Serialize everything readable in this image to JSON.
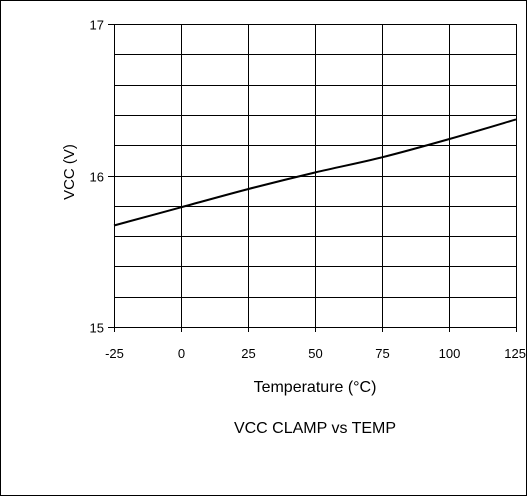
{
  "chart_data": {
    "type": "line",
    "title": "VCC CLAMP vs TEMP",
    "xlabel": "Temperature (°C)",
    "ylabel": "VCC (V)",
    "xlim": [
      -25,
      125
    ],
    "ylim": [
      15,
      17
    ],
    "x_ticks": [
      -25,
      0,
      25,
      50,
      75,
      100,
      125
    ],
    "x_tick_labels": [
      "-25",
      "0",
      "25",
      "50",
      "75",
      "100",
      "125"
    ],
    "y_ticks": [
      15,
      16,
      17
    ],
    "y_tick_labels": [
      "15",
      "16",
      "17"
    ],
    "grid": true,
    "legend": "none",
    "line_color": "#000000",
    "series": [
      {
        "x": [
          -25,
          0,
          25,
          50,
          75,
          100,
          125
        ],
        "y": [
          15.67,
          15.79,
          15.91,
          16.02,
          16.12,
          16.24,
          16.37
        ]
      }
    ]
  }
}
